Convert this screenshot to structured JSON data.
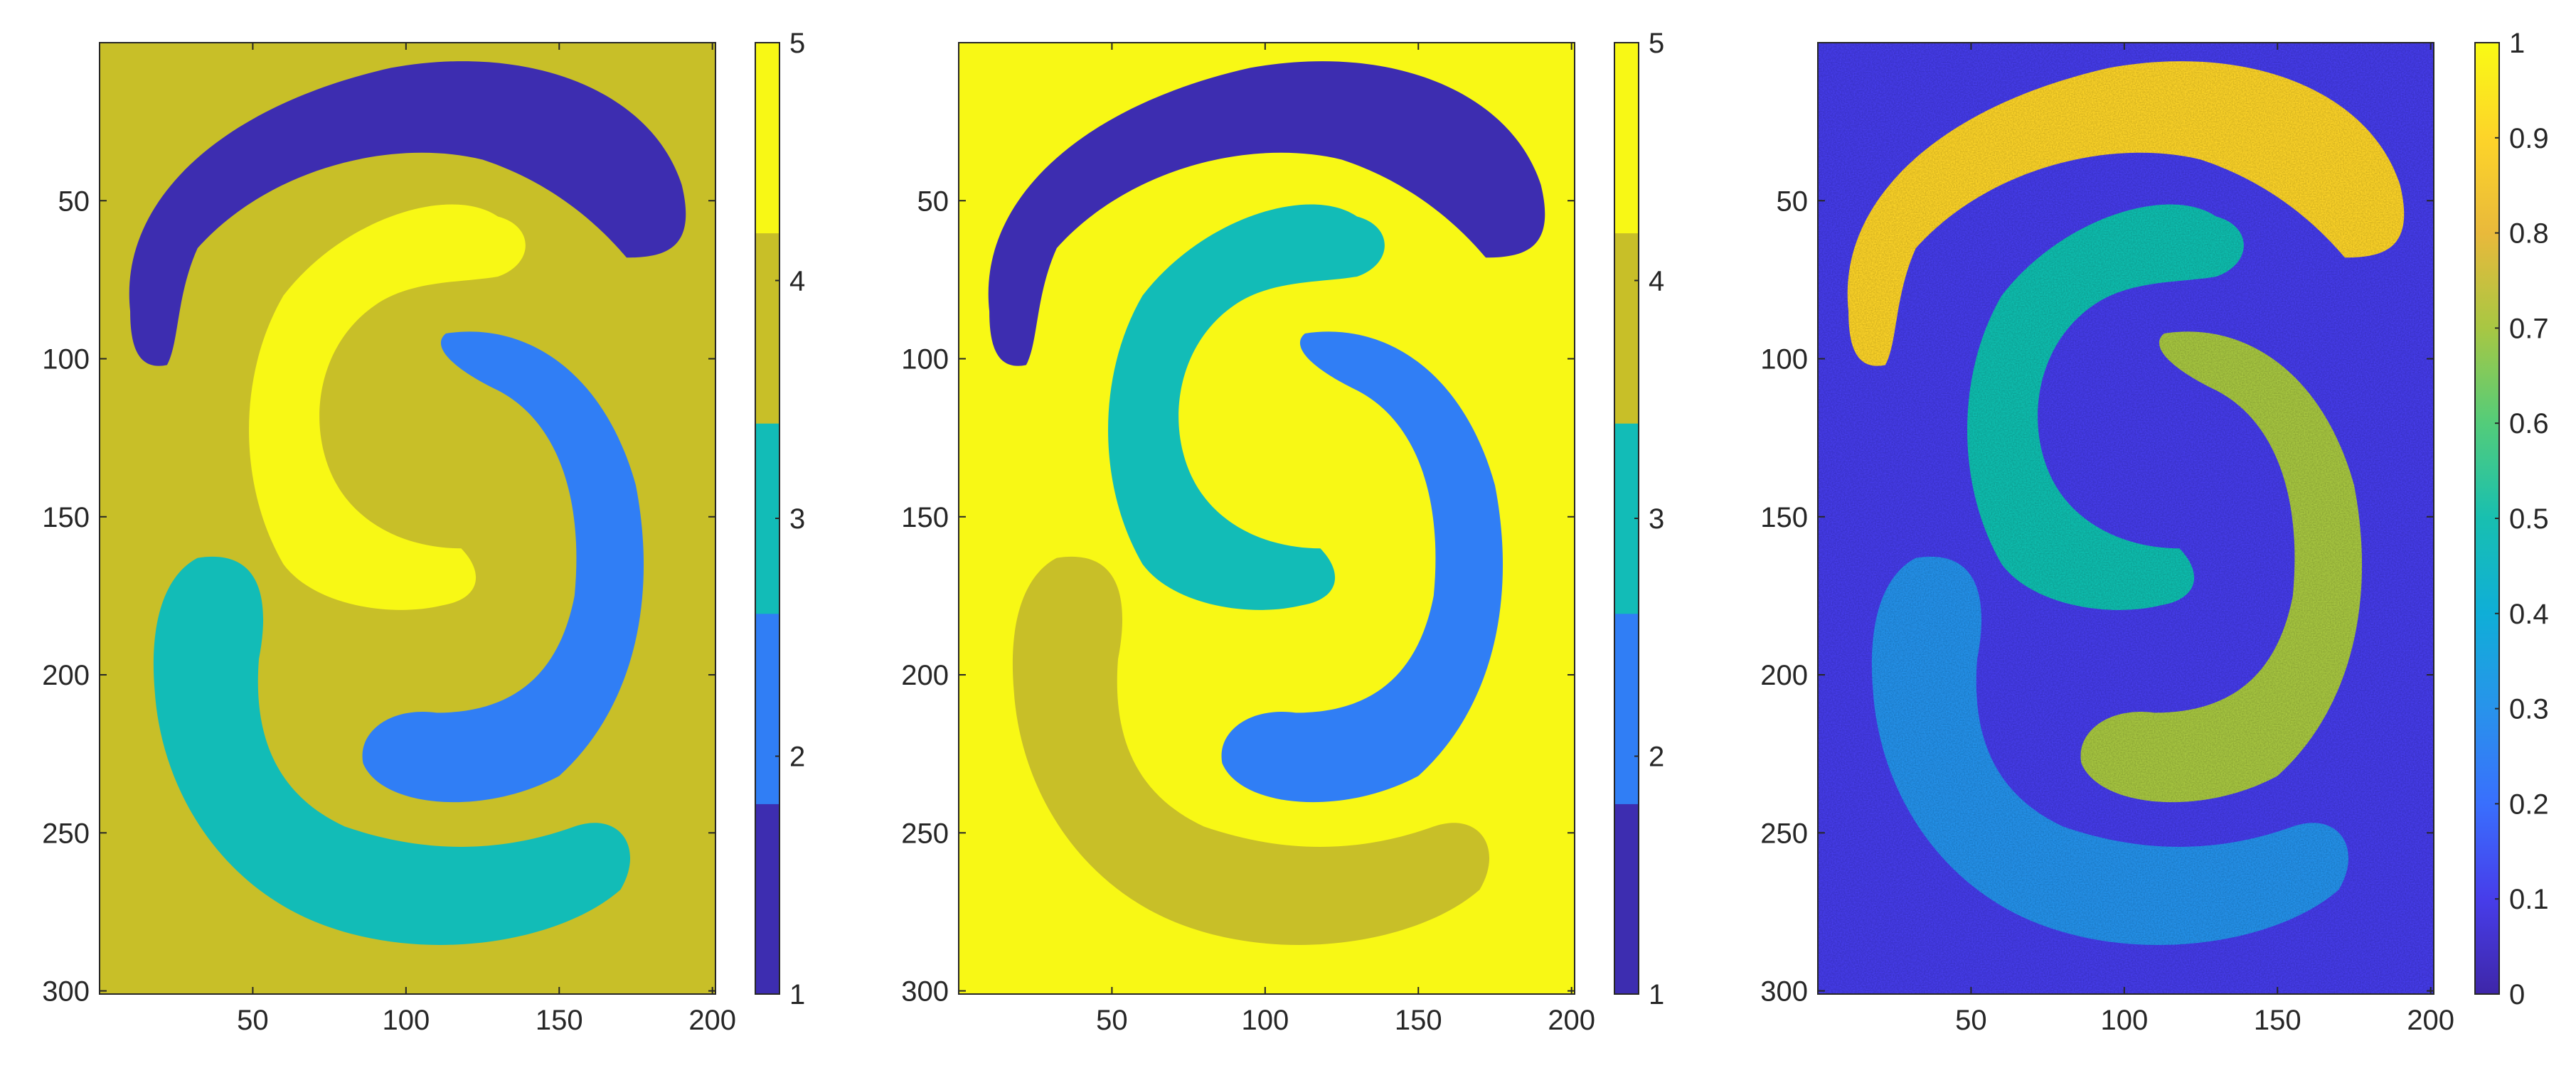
{
  "figure": {
    "panels": [
      {
        "type": "heatmap",
        "xticks": [
          50,
          100,
          150,
          200
        ],
        "yticks": [
          50,
          100,
          150,
          200,
          250,
          300
        ],
        "xlim": [
          0,
          201
        ],
        "ylim": [
          0,
          301
        ],
        "background_label": 4,
        "shapes": [
          {
            "shape": "top-arc",
            "label": 1
          },
          {
            "shape": "upper-left-s-arm",
            "label": 5
          },
          {
            "shape": "right-arc",
            "label": 2
          },
          {
            "shape": "bottom-arc",
            "label": 3
          }
        ],
        "colorbar": {
          "kind": "discrete",
          "levels": [
            1,
            2,
            3,
            4,
            5
          ],
          "colors": [
            "#3d2db0",
            "#307ef5",
            "#12bcb7",
            "#c8bf28",
            "#f8f815"
          ],
          "ticks": [
            "1",
            "2",
            "3",
            "4",
            "5"
          ]
        }
      },
      {
        "type": "heatmap",
        "xticks": [
          50,
          100,
          150,
          200
        ],
        "yticks": [
          50,
          100,
          150,
          200,
          250,
          300
        ],
        "xlim": [
          0,
          201
        ],
        "ylim": [
          0,
          301
        ],
        "background_label": 5,
        "shapes": [
          {
            "shape": "top-arc",
            "label": 1
          },
          {
            "shape": "upper-left-s-arm",
            "label": 3
          },
          {
            "shape": "right-arc",
            "label": 2
          },
          {
            "shape": "bottom-arc",
            "label": 4
          }
        ],
        "colorbar": {
          "kind": "discrete",
          "levels": [
            1,
            2,
            3,
            4,
            5
          ],
          "colors": [
            "#3d2db0",
            "#307ef5",
            "#12bcb7",
            "#c8bf28",
            "#f8f815"
          ],
          "ticks": [
            "1",
            "2",
            "3",
            "4",
            "5"
          ]
        }
      },
      {
        "type": "heatmap",
        "xticks": [
          50,
          100,
          150,
          200
        ],
        "yticks": [
          50,
          100,
          150,
          200,
          250,
          300
        ],
        "xlim": [
          0,
          201
        ],
        "ylim": [
          0,
          301
        ],
        "background_value": 0.1,
        "noise": true,
        "shapes": [
          {
            "shape": "top-arc",
            "value": 0.9
          },
          {
            "shape": "upper-left-s-arm",
            "value": 0.5
          },
          {
            "shape": "right-arc",
            "value": 0.7
          },
          {
            "shape": "bottom-arc",
            "value": 0.3
          }
        ],
        "colorbar": {
          "kind": "continuous",
          "range": [
            0,
            1
          ],
          "ticks": [
            "0",
            "0.1",
            "0.2",
            "0.3",
            "0.4",
            "0.5",
            "0.6",
            "0.7",
            "0.8",
            "0.9",
            "1"
          ],
          "colormap": "parula"
        }
      }
    ]
  },
  "chart_data": [
    {
      "type": "heatmap",
      "description_of_values": "segmentation label map, 301 rows x 201 columns",
      "x_tick_labels": [
        "50",
        "100",
        "150",
        "200"
      ],
      "y_tick_labels": [
        "50",
        "100",
        "150",
        "200",
        "250",
        "300"
      ],
      "xlim": [
        0,
        201
      ],
      "ylim": [
        0,
        301
      ],
      "regions": [
        {
          "region": "background",
          "value": 4
        },
        {
          "region": "top-arc",
          "value": 1
        },
        {
          "region": "upper-left-s-arm",
          "value": 5
        },
        {
          "region": "right-arc",
          "value": 2
        },
        {
          "region": "bottom-arc",
          "value": 3
        }
      ],
      "colorbar_ticks": [
        "1",
        "2",
        "3",
        "4",
        "5"
      ]
    },
    {
      "type": "heatmap",
      "x_tick_labels": [
        "50",
        "100",
        "150",
        "200"
      ],
      "y_tick_labels": [
        "50",
        "100",
        "150",
        "200",
        "250",
        "300"
      ],
      "xlim": [
        0,
        201
      ],
      "ylim": [
        0,
        301
      ],
      "regions": [
        {
          "region": "background",
          "value": 5
        },
        {
          "region": "top-arc",
          "value": 1
        },
        {
          "region": "upper-left-s-arm",
          "value": 3
        },
        {
          "region": "right-arc",
          "value": 2
        },
        {
          "region": "bottom-arc",
          "value": 4
        }
      ],
      "colorbar_ticks": [
        "1",
        "2",
        "3",
        "4",
        "5"
      ]
    },
    {
      "type": "heatmap",
      "x_tick_labels": [
        "50",
        "100",
        "150",
        "200"
      ],
      "y_tick_labels": [
        "50",
        "100",
        "150",
        "200",
        "250",
        "300"
      ],
      "xlim": [
        0,
        201
      ],
      "ylim": [
        0,
        301
      ],
      "regions": [
        {
          "region": "background",
          "value": 0.1
        },
        {
          "region": "top-arc",
          "value": 0.9
        },
        {
          "region": "upper-left-s-arm",
          "value": 0.5
        },
        {
          "region": "right-arc",
          "value": 0.7
        },
        {
          "region": "bottom-arc",
          "value": 0.3
        }
      ],
      "noisy": true,
      "colorbar_range": [
        0,
        1
      ],
      "colorbar_ticks": [
        "0",
        "0.1",
        "0.2",
        "0.3",
        "0.4",
        "0.5",
        "0.6",
        "0.7",
        "0.8",
        "0.9",
        "1"
      ]
    }
  ]
}
